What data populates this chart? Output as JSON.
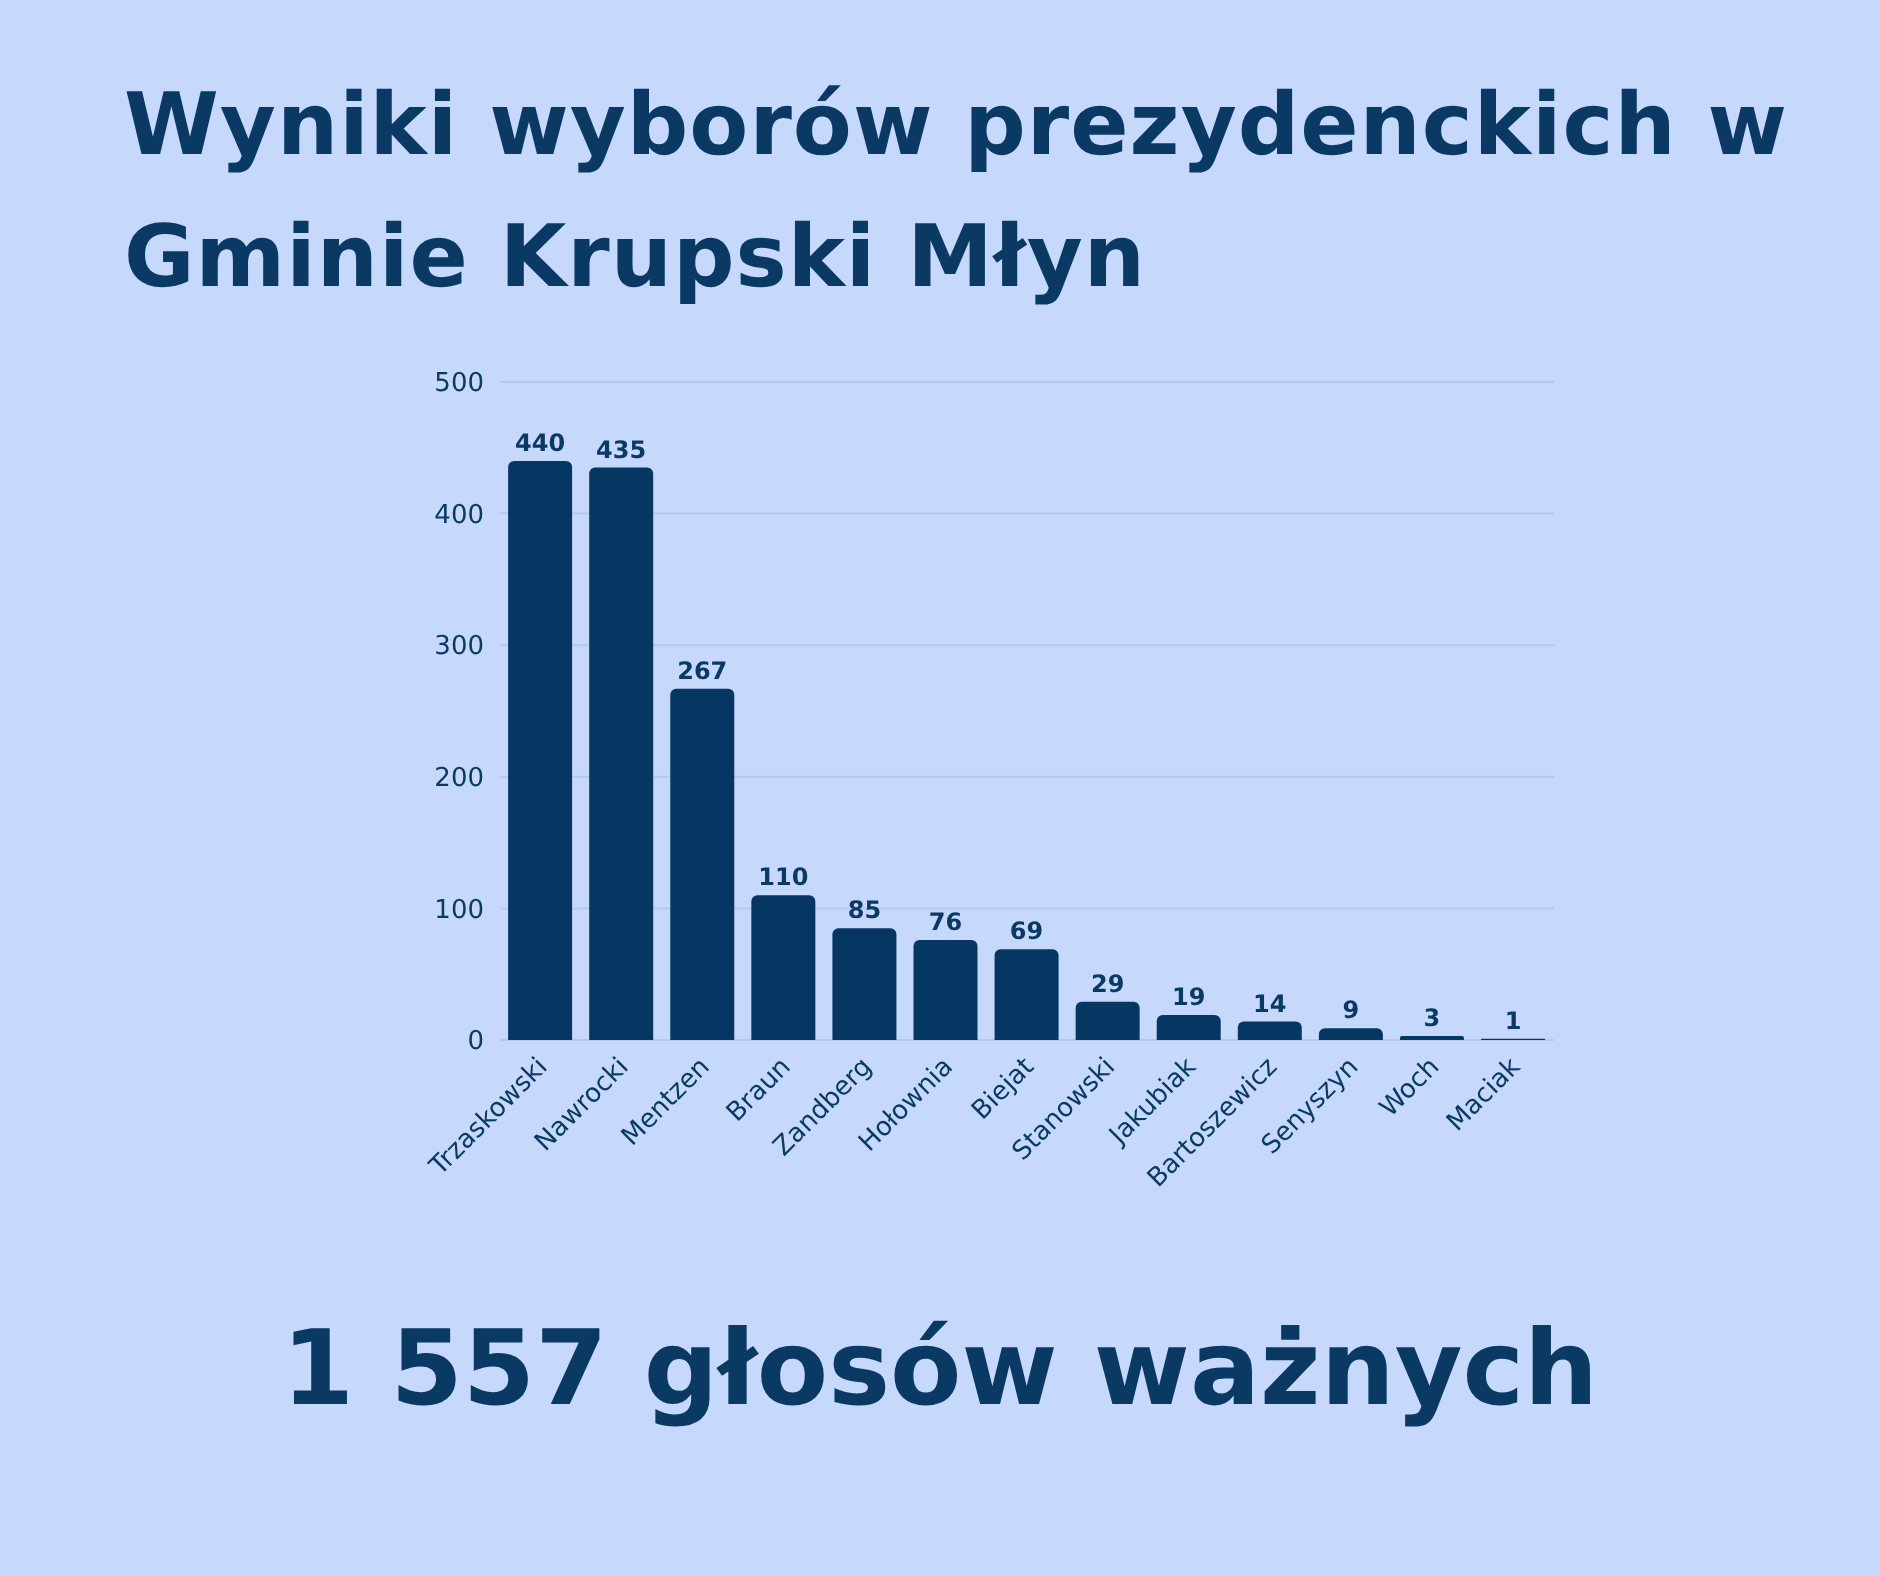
{
  "chart_data": {
    "type": "bar",
    "title": "Wyniki wyborów prezydenckich w Gminie Krupski Młyn",
    "categories": [
      "Trzaskowski",
      "Nawrocki",
      "Mentzen",
      "Braun",
      "Zandberg",
      "Hołownia",
      "Biejat",
      "Stanowski",
      "Jakubiak",
      "Bartoszewicz",
      "Senyszyn",
      "Woch",
      "Maciak"
    ],
    "values": [
      440,
      435,
      267,
      110,
      85,
      76,
      69,
      29,
      19,
      14,
      9,
      3,
      1
    ],
    "color": "#063763",
    "ylim": [
      0,
      500
    ],
    "yticks": [
      0,
      100,
      200,
      300,
      400,
      500
    ],
    "grid": "y",
    "data_labels": true,
    "annotations": [
      "1 557 głosów ważnych"
    ]
  }
}
